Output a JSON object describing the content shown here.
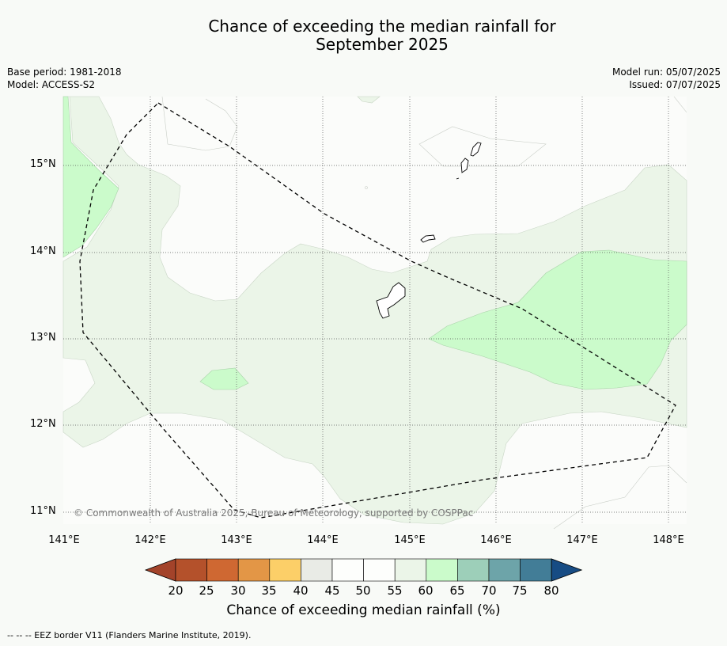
{
  "title_line1": "Chance of exceeding the median rainfall for",
  "title_line2": "September 2025",
  "base_period": "Base period: 1981-2018",
  "model": "Model: ACCESS-S2",
  "model_run": "Model run: 05/07/2025",
  "issued": "Issued: 07/07/2025",
  "latitude_labels": [
    "15°N",
    "14°N",
    "13°N",
    "12°N",
    "11°N"
  ],
  "longitude_labels": [
    "141°E",
    "142°E",
    "143°E",
    "144°E",
    "145°E",
    "146°E",
    "147°E",
    "148°E"
  ],
  "copyright": "© Commonwealth of Australia 2025, Bureau of Meteorology, supported by COSPPac",
  "colorbar": {
    "labels": [
      "20",
      "25",
      "30",
      "35",
      "40",
      "45",
      "50",
      "55",
      "60",
      "65",
      "70",
      "75",
      "80"
    ],
    "colors": [
      "#b4512b",
      "#cf6832",
      "#e39646",
      "#fccf68",
      "#e9ebe6",
      "#fdfefc",
      "#fdfefc",
      "#ebf5e8",
      "#cbfbcb",
      "#9dcfb9",
      "#6da4a9",
      "#427d97"
    ],
    "low_extend_color": "#a3432a",
    "high_extend_color": "#174c84",
    "title": "Chance of exceeding median rainfall (%)"
  },
  "footer": "--  --  -- EEZ border V11 (Flanders Marine Institute, 2019).",
  "map_colors": {
    "band_55_60": "#ebf5e8",
    "band_60_65": "#cbfbcb",
    "background": "#f8faf7"
  }
}
